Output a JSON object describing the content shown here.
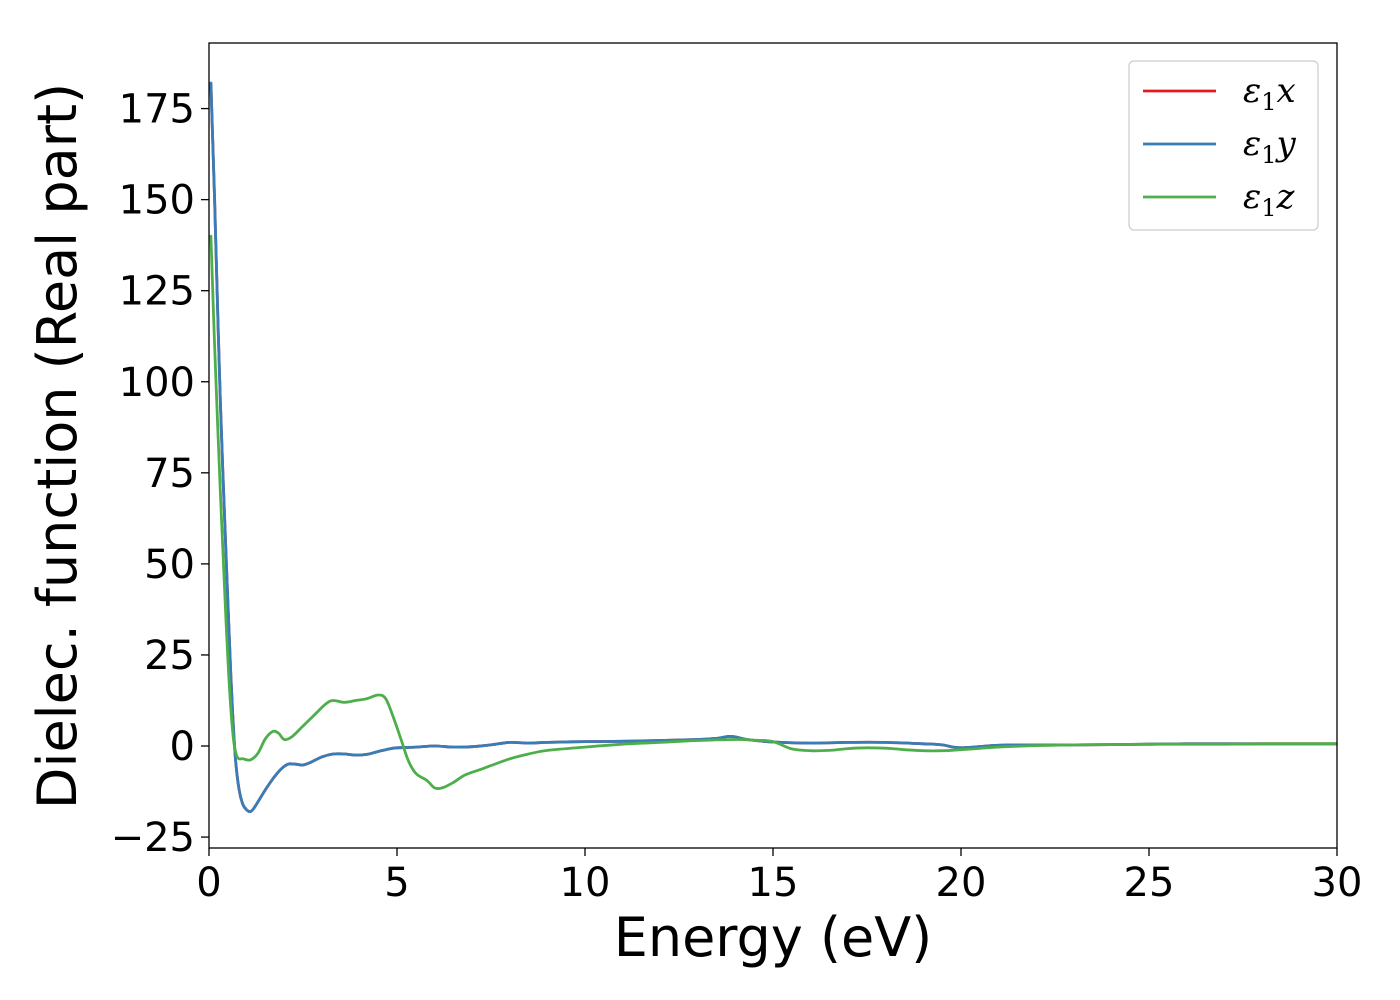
{
  "chart_data": {
    "type": "line",
    "xlabel": "Energy (eV)",
    "ylabel": "Dielec. function (Real part)",
    "xlim": [
      0,
      30
    ],
    "ylim": [
      -28,
      193
    ],
    "xticks": [
      0,
      5,
      10,
      15,
      20,
      25,
      30
    ],
    "yticks": [
      -25,
      0,
      25,
      50,
      75,
      100,
      125,
      150,
      175
    ],
    "ytick_labels": [
      "−25",
      "0",
      "25",
      "50",
      "75",
      "100",
      "125",
      "150",
      "175"
    ],
    "grid": false,
    "legend_position": "top-right",
    "series": [
      {
        "name": "ε₁x",
        "name_main": "ε",
        "name_sub": "1",
        "name_tail": "x",
        "color": "#e41a1c",
        "x": [
          0.05,
          0.15,
          0.3,
          0.5,
          0.6,
          0.7,
          0.8,
          0.9,
          1.0,
          1.1,
          1.2,
          1.35,
          1.5,
          1.7,
          1.9,
          2.1,
          2.3,
          2.5,
          2.7,
          3.0,
          3.3,
          3.6,
          3.9,
          4.2,
          4.5,
          4.8,
          5.0,
          5.5,
          6.0,
          6.5,
          7.0,
          7.5,
          8.0,
          8.5,
          9.0,
          10.0,
          11.0,
          12.0,
          13.0,
          13.5,
          13.8,
          14.0,
          14.3,
          15.0,
          16.0,
          17.0,
          18.0,
          19.0,
          19.5,
          20.0,
          21.0,
          22.0,
          23.0,
          24.0,
          25.0,
          26.0,
          27.0,
          28.0,
          29.0,
          30.0
        ],
        "y": [
          182,
          150,
          95,
          40,
          15,
          -3,
          -12,
          -16,
          -17.5,
          -18,
          -17,
          -14.5,
          -12,
          -9,
          -6.5,
          -5,
          -5,
          -5.2,
          -4.5,
          -3,
          -2.2,
          -2.2,
          -2.5,
          -2.3,
          -1.5,
          -0.8,
          -0.5,
          -0.3,
          0,
          -0.3,
          -0.2,
          0.3,
          1.0,
          0.8,
          1.0,
          1.2,
          1.3,
          1.5,
          1.8,
          2.1,
          2.6,
          2.5,
          1.8,
          1.1,
          0.8,
          1.0,
          1.0,
          0.6,
          0.3,
          -0.5,
          0.2,
          0.3,
          0.3,
          0.4,
          0.5,
          0.6,
          0.6,
          0.6,
          0.6,
          0.6
        ]
      },
      {
        "name": "ε₁y",
        "name_main": "ε",
        "name_sub": "1",
        "name_tail": "y",
        "color": "#377eb8",
        "x": [
          0.05,
          0.15,
          0.3,
          0.5,
          0.6,
          0.7,
          0.8,
          0.9,
          1.0,
          1.1,
          1.2,
          1.35,
          1.5,
          1.7,
          1.9,
          2.1,
          2.3,
          2.5,
          2.7,
          3.0,
          3.3,
          3.6,
          3.9,
          4.2,
          4.5,
          4.8,
          5.0,
          5.5,
          6.0,
          6.5,
          7.0,
          7.5,
          8.0,
          8.5,
          9.0,
          10.0,
          11.0,
          12.0,
          13.0,
          13.5,
          13.8,
          14.0,
          14.3,
          15.0,
          16.0,
          17.0,
          18.0,
          19.0,
          19.5,
          20.0,
          21.0,
          22.0,
          23.0,
          24.0,
          25.0,
          26.0,
          27.0,
          28.0,
          29.0,
          30.0
        ],
        "y": [
          182,
          150,
          95,
          40,
          15,
          -3,
          -12,
          -16,
          -17.5,
          -18,
          -17,
          -14.5,
          -12,
          -9,
          -6.5,
          -5,
          -5,
          -5.2,
          -4.5,
          -3,
          -2.2,
          -2.2,
          -2.5,
          -2.3,
          -1.5,
          -0.8,
          -0.5,
          -0.3,
          0,
          -0.3,
          -0.2,
          0.3,
          1.0,
          0.8,
          1.0,
          1.2,
          1.3,
          1.5,
          1.8,
          2.1,
          2.6,
          2.5,
          1.8,
          1.1,
          0.8,
          1.0,
          1.0,
          0.6,
          0.3,
          -0.5,
          0.2,
          0.3,
          0.3,
          0.4,
          0.5,
          0.6,
          0.6,
          0.6,
          0.6,
          0.6
        ]
      },
      {
        "name": "ε₁z",
        "name_main": "ε",
        "name_sub": "1",
        "name_tail": "z",
        "color": "#4daf4a",
        "x": [
          0.05,
          0.15,
          0.3,
          0.45,
          0.55,
          0.65,
          0.75,
          0.9,
          1.1,
          1.3,
          1.5,
          1.7,
          1.85,
          2.0,
          2.2,
          2.5,
          2.8,
          3.1,
          3.3,
          3.6,
          3.9,
          4.2,
          4.5,
          4.7,
          4.9,
          5.1,
          5.3,
          5.5,
          5.8,
          6.0,
          6.2,
          6.5,
          6.8,
          7.2,
          7.6,
          8.0,
          8.5,
          9.0,
          10.0,
          11.0,
          12.0,
          13.0,
          14.0,
          14.5,
          15.0,
          15.5,
          16.0,
          16.5,
          17.0,
          17.5,
          18.0,
          18.5,
          19.0,
          19.5,
          20.0,
          21.0,
          22.0,
          23.0,
          24.0,
          25.0,
          26.0,
          27.0,
          28.0,
          29.0,
          30.0
        ],
        "y": [
          140,
          110,
          70,
          35,
          15,
          2,
          -3,
          -3.5,
          -3.8,
          -2,
          2,
          4,
          3.5,
          1.8,
          2.5,
          5.5,
          8.5,
          11.5,
          12.5,
          12,
          12.5,
          13,
          14,
          13,
          8,
          2,
          -4,
          -7.5,
          -9.5,
          -11.5,
          -11.5,
          -10,
          -8,
          -6.5,
          -5,
          -3.5,
          -2.2,
          -1.2,
          -0.3,
          0.5,
          1.0,
          1.5,
          1.8,
          1.6,
          1.2,
          -0.8,
          -1.3,
          -1.2,
          -0.7,
          -0.5,
          -0.6,
          -1.0,
          -1.3,
          -1.3,
          -1.0,
          -0.3,
          0.1,
          0.3,
          0.4,
          0.5,
          0.5,
          0.5,
          0.6,
          0.6,
          0.6
        ]
      }
    ]
  }
}
